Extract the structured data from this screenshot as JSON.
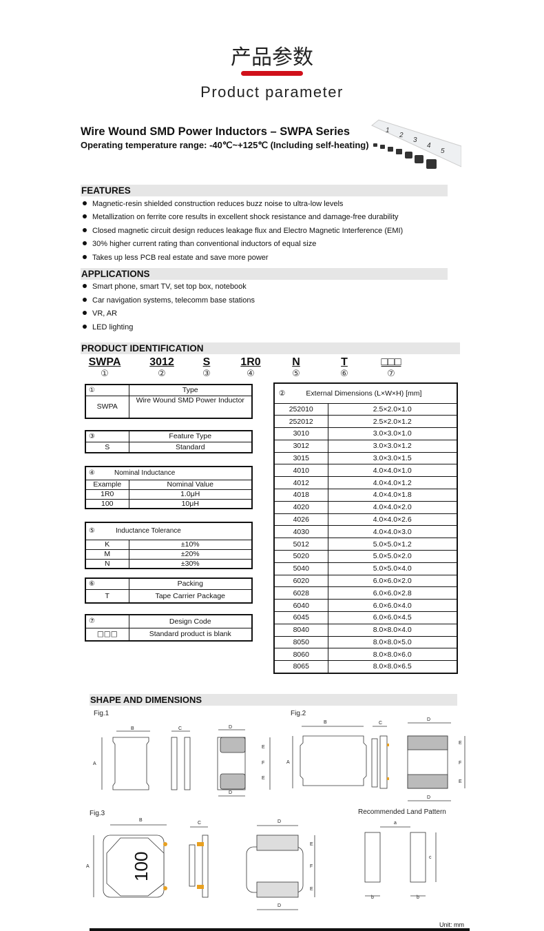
{
  "header": {
    "title_cn": "产品参数",
    "title_en": "Product parameter",
    "accent": "#d0101a"
  },
  "product": {
    "title": "Wire Wound SMD Power Inductors – SWPA Series",
    "subtitle": "Operating temperature range: -40℃~+125℃  (Including self-heating)",
    "ruler_marks": [
      "1",
      "2",
      "3",
      "4",
      "5"
    ]
  },
  "features": {
    "heading": "FEATURES",
    "items": [
      "Magnetic-resin shielded construction reduces buzz noise to ultra-low levels",
      "Metallization on ferrite core results in excellent shock resistance and damage-free durability",
      "Closed magnetic circuit design reduces leakage flux and Electro Magnetic Interference (EMI)",
      "30% higher current rating than conventional inductors of equal size",
      "Takes up less PCB real estate and save more power"
    ]
  },
  "applications": {
    "heading": "APPLICATIONS",
    "items": [
      "Smart phone, smart TV, set top box, notebook",
      "Car navigation systems, telecomm base stations",
      "VR, AR",
      "LED lighting"
    ]
  },
  "identification": {
    "heading": "PRODUCT IDENTIFICATION",
    "codes": [
      {
        "code": "SWPA",
        "num": "①"
      },
      {
        "code": "3012",
        "num": "②"
      },
      {
        "code": "S",
        "num": "③"
      },
      {
        "code": "1R0",
        "num": "④"
      },
      {
        "code": "N",
        "num": "⑤"
      },
      {
        "code": "T",
        "num": "⑥"
      },
      {
        "code": "□□□",
        "num": "⑦"
      }
    ],
    "type": {
      "num": "①",
      "title": "Type",
      "code": "SWPA",
      "desc": "Wire Wound SMD Power Inductor"
    },
    "feature_type": {
      "num": "③",
      "title": "Feature Type",
      "code": "S",
      "desc": "Standard"
    },
    "inductance": {
      "num": "④",
      "title": "Nominal Inductance",
      "col1": "Example",
      "col2": "Nominal Value",
      "rows": [
        [
          "1R0",
          "1.0μH"
        ],
        [
          "100",
          "10μH"
        ]
      ]
    },
    "tolerance": {
      "num": "⑤",
      "title": "Inductance Tolerance",
      "rows": [
        [
          "K",
          "±10%"
        ],
        [
          "M",
          "±20%"
        ],
        [
          "N",
          "±30%"
        ]
      ]
    },
    "packing": {
      "num": "⑥",
      "title": "Packing",
      "code": "T",
      "desc": "Tape Carrier Package"
    },
    "design": {
      "num": "⑦",
      "title": "Design Code",
      "code": "□□□",
      "desc": "Standard product is blank"
    },
    "dimensions": {
      "num": "②",
      "title": "External Dimensions (L×W×H) [mm]",
      "rows": [
        [
          "252010",
          "2.5×2.0×1.0"
        ],
        [
          "252012",
          "2.5×2.0×1.2"
        ],
        [
          "3010",
          "3.0×3.0×1.0"
        ],
        [
          "3012",
          "3.0×3.0×1.2"
        ],
        [
          "3015",
          "3.0×3.0×1.5"
        ],
        [
          "4010",
          "4.0×4.0×1.0"
        ],
        [
          "4012",
          "4.0×4.0×1.2"
        ],
        [
          "4018",
          "4.0×4.0×1.8"
        ],
        [
          "4020",
          "4.0×4.0×2.0"
        ],
        [
          "4026",
          "4.0×4.0×2.6"
        ],
        [
          "4030",
          "4.0×4.0×3.0"
        ],
        [
          "5012",
          "5.0×5.0×1.2"
        ],
        [
          "5020",
          "5.0×5.0×2.0"
        ],
        [
          "5040",
          "5.0×5.0×4.0"
        ],
        [
          "6020",
          "6.0×6.0×2.0"
        ],
        [
          "6028",
          "6.0×6.0×2.8"
        ],
        [
          "6040",
          "6.0×6.0×4.0"
        ],
        [
          "6045",
          "6.0×6.0×4.5"
        ],
        [
          "8040",
          "8.0×8.0×4.0"
        ],
        [
          "8050",
          "8.0×8.0×5.0"
        ],
        [
          "8060",
          "8.0×8.0×6.0"
        ],
        [
          "8065",
          "8.0×8.0×6.5"
        ]
      ]
    }
  },
  "shape": {
    "heading": "SHAPE AND DIMENSIONS",
    "fig1": "Fig.1",
    "fig2": "Fig.2",
    "fig3": "Fig.3",
    "land": "Recommended Land Pattern",
    "marking": "100",
    "labels": {
      "A": "A",
      "B": "B",
      "C": "C",
      "D": "D",
      "E": "E",
      "F": "F",
      "a": "a",
      "b": "b",
      "c": "c"
    },
    "unit": "Unit: mm",
    "terminal_color": "#e8a020",
    "pad_color": "#c8c8c8"
  }
}
